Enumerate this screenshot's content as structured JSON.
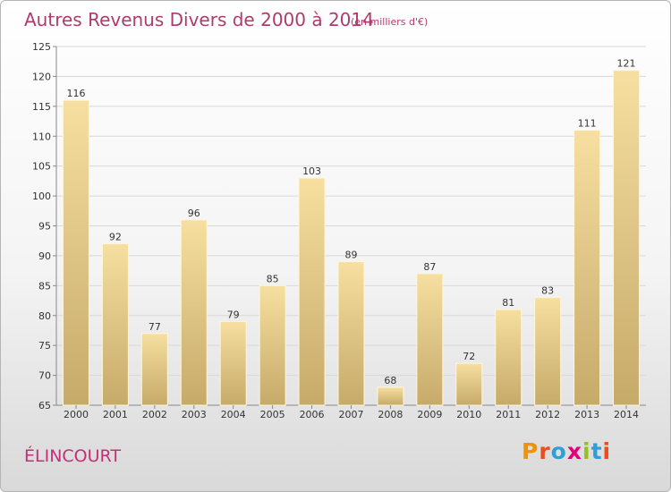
{
  "page": {
    "title": "Autres Revenus Divers de 2000 à 2014",
    "subtitle": "(en milliers d'€)",
    "commune": "ÉLINCOURT",
    "logo": {
      "text": "Proxiti",
      "letters": [
        "P",
        "r",
        "o",
        "x",
        "i",
        "t",
        "i"
      ],
      "colors": [
        "#f29200",
        "#e94e1b",
        "#2e9fd9",
        "#e2007a",
        "#95c11f",
        "#2e9fd9",
        "#e94e1b"
      ]
    }
  },
  "chart_data": {
    "type": "bar",
    "title": "Autres Revenus Divers de 2000 à 2014",
    "subtitle": "(en milliers d'€)",
    "categories": [
      "2000",
      "2001",
      "2002",
      "2003",
      "2004",
      "2005",
      "2006",
      "2007",
      "2008",
      "2009",
      "2010",
      "2011",
      "2012",
      "2013",
      "2014"
    ],
    "values": [
      116,
      92,
      77,
      96,
      79,
      85,
      103,
      89,
      68,
      87,
      72,
      81,
      83,
      111,
      121
    ],
    "ylim": [
      65,
      125
    ],
    "yticks": [
      65,
      70,
      75,
      80,
      85,
      90,
      95,
      100,
      105,
      110,
      115,
      120,
      125
    ],
    "grid": true,
    "legend": "none",
    "colors": {
      "bar_light": "#f6dfa0",
      "bar_dark": "#c6aa6a",
      "grid": "#d8d8d8",
      "axis": "#888888"
    }
  }
}
